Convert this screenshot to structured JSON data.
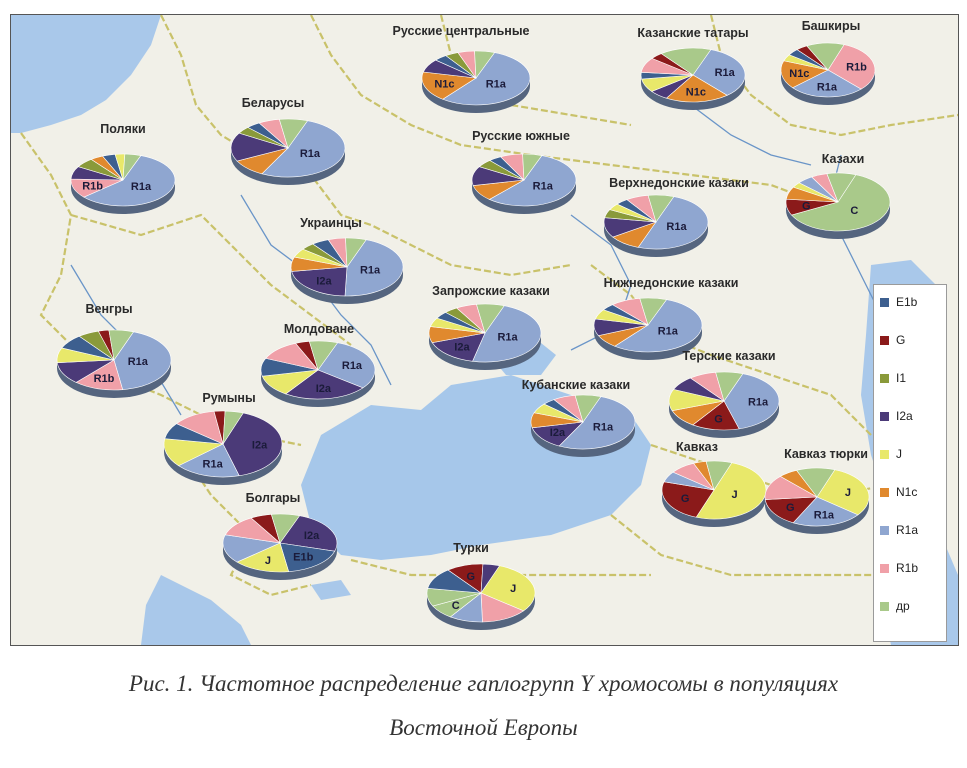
{
  "colors": {
    "E1b": "#3d5f8f",
    "G": "#8b1a1a",
    "I1": "#8a9a3a",
    "I2a": "#4b3a78",
    "J": "#e8e86a",
    "N1c": "#e0892e",
    "R1a": "#8fa6d0",
    "R1b": "#f0a0a8",
    "dr": "#a9c98a"
  },
  "legend": [
    {
      "key": "E1b",
      "label": "E1b"
    },
    {
      "key": "G",
      "label": "G"
    },
    {
      "key": "I1",
      "label": "I1"
    },
    {
      "key": "I2a",
      "label": "I2a"
    },
    {
      "key": "J",
      "label": "J"
    },
    {
      "key": "N1c",
      "label": "N1c"
    },
    {
      "key": "R1a",
      "label": "R1a"
    },
    {
      "key": "R1b",
      "label": "R1b"
    },
    {
      "key": "dr",
      "label": "др"
    }
  ],
  "chart_data": [
    {
      "type": "pie",
      "title": "Поляки",
      "slices": [
        {
          "group": "R1a",
          "value": 58,
          "label": "R1a"
        },
        {
          "group": "R1b",
          "value": 12,
          "label": "R1b"
        },
        {
          "group": "I2a",
          "value": 8
        },
        {
          "group": "I1",
          "value": 6
        },
        {
          "group": "N1c",
          "value": 4
        },
        {
          "group": "E1b",
          "value": 4
        },
        {
          "group": "J",
          "value": 3
        },
        {
          "group": "dr",
          "value": 5
        }
      ]
    },
    {
      "type": "pie",
      "title": "Беларусы",
      "slices": [
        {
          "group": "R1a",
          "value": 52,
          "label": "R1a"
        },
        {
          "group": "N1c",
          "value": 10
        },
        {
          "group": "I2a",
          "value": 16
        },
        {
          "group": "I1",
          "value": 4
        },
        {
          "group": "E1b",
          "value": 4
        },
        {
          "group": "R1b",
          "value": 6
        },
        {
          "group": "dr",
          "value": 8
        }
      ]
    },
    {
      "type": "pie",
      "title": "Русские центральные",
      "slices": [
        {
          "group": "R1a",
          "value": 55,
          "label": "R1a"
        },
        {
          "group": "N1c",
          "value": 18,
          "label": "N1c"
        },
        {
          "group": "I2a",
          "value": 8
        },
        {
          "group": "E1b",
          "value": 4
        },
        {
          "group": "I1",
          "value": 4
        },
        {
          "group": "R1b",
          "value": 5
        },
        {
          "group": "dr",
          "value": 6
        }
      ]
    },
    {
      "type": "pie",
      "title": "Казанские татары",
      "slices": [
        {
          "group": "R1a",
          "value": 33,
          "label": "R1a"
        },
        {
          "group": "N1c",
          "value": 20,
          "label": "N1c"
        },
        {
          "group": "I2a",
          "value": 6
        },
        {
          "group": "J",
          "value": 8
        },
        {
          "group": "E1b",
          "value": 4
        },
        {
          "group": "R1b",
          "value": 9
        },
        {
          "group": "G",
          "value": 4
        },
        {
          "group": "dr",
          "value": 16
        }
      ]
    },
    {
      "type": "pie",
      "title": "Башкиры",
      "slices": [
        {
          "group": "R1b",
          "value": 32,
          "label": "R1b"
        },
        {
          "group": "R1a",
          "value": 26,
          "label": "R1a"
        },
        {
          "group": "N1c",
          "value": 17,
          "label": "N1c"
        },
        {
          "group": "J",
          "value": 4
        },
        {
          "group": "E1b",
          "value": 4
        },
        {
          "group": "G",
          "value": 4
        },
        {
          "group": "dr",
          "value": 13
        }
      ]
    },
    {
      "type": "pie",
      "title": "Русские южные",
      "slices": [
        {
          "group": "R1a",
          "value": 56,
          "label": "R1a"
        },
        {
          "group": "N1c",
          "value": 10
        },
        {
          "group": "I2a",
          "value": 12
        },
        {
          "group": "I1",
          "value": 5
        },
        {
          "group": "E1b",
          "value": 4
        },
        {
          "group": "R1b",
          "value": 7
        },
        {
          "group": "dr",
          "value": 6
        }
      ]
    },
    {
      "type": "pie",
      "title": "Казахи",
      "slices": [
        {
          "group": "C",
          "value": 62,
          "label": "C"
        },
        {
          "group": "G",
          "value": 9,
          "label": "G"
        },
        {
          "group": "N1c",
          "value": 7
        },
        {
          "group": "J",
          "value": 3
        },
        {
          "group": "R1a",
          "value": 5
        },
        {
          "group": "R1b",
          "value": 5
        },
        {
          "group": "dr",
          "value": 9
        }
      ]
    },
    {
      "type": "pie",
      "title": "Верхнедонские казаки",
      "slices": [
        {
          "group": "R1a",
          "value": 50,
          "label": "R1a"
        },
        {
          "group": "N1c",
          "value": 10
        },
        {
          "group": "I2a",
          "value": 12
        },
        {
          "group": "I1",
          "value": 5
        },
        {
          "group": "J",
          "value": 4
        },
        {
          "group": "E1b",
          "value": 4
        },
        {
          "group": "R1b",
          "value": 7
        },
        {
          "group": "dr",
          "value": 8
        }
      ]
    },
    {
      "type": "pie",
      "title": "Украинцы",
      "slices": [
        {
          "group": "R1a",
          "value": 45,
          "label": "R1a"
        },
        {
          "group": "I2a",
          "value": 22,
          "label": "I2a"
        },
        {
          "group": "N1c",
          "value": 8
        },
        {
          "group": "J",
          "value": 5
        },
        {
          "group": "I1",
          "value": 4
        },
        {
          "group": "E1b",
          "value": 5
        },
        {
          "group": "R1b",
          "value": 5
        },
        {
          "group": "dr",
          "value": 6
        }
      ]
    },
    {
      "type": "pie",
      "title": "Венгры",
      "slices": [
        {
          "group": "R1a",
          "value": 42,
          "label": "R1a"
        },
        {
          "group": "R1b",
          "value": 14,
          "label": "R1b"
        },
        {
          "group": "I2a",
          "value": 12
        },
        {
          "group": "J",
          "value": 8
        },
        {
          "group": "E1b",
          "value": 8
        },
        {
          "group": "I1",
          "value": 6
        },
        {
          "group": "G",
          "value": 3
        },
        {
          "group": "dr",
          "value": 7
        }
      ]
    },
    {
      "type": "pie",
      "title": "Запрожские казаки",
      "slices": [
        {
          "group": "R1a",
          "value": 48,
          "label": "R1a"
        },
        {
          "group": "I2a",
          "value": 16,
          "label": "I2a"
        },
        {
          "group": "N1c",
          "value": 9
        },
        {
          "group": "J",
          "value": 5
        },
        {
          "group": "E1b",
          "value": 4
        },
        {
          "group": "I1",
          "value": 4
        },
        {
          "group": "R1b",
          "value": 6
        },
        {
          "group": "dr",
          "value": 8
        }
      ]
    },
    {
      "type": "pie",
      "title": "Нижнедонские казаки",
      "slices": [
        {
          "group": "R1a",
          "value": 55,
          "label": "R1a"
        },
        {
          "group": "N1c",
          "value": 8
        },
        {
          "group": "I2a",
          "value": 10
        },
        {
          "group": "J",
          "value": 6
        },
        {
          "group": "E1b",
          "value": 4
        },
        {
          "group": "R1b",
          "value": 9
        },
        {
          "group": "dr",
          "value": 8
        }
      ]
    },
    {
      "type": "pie",
      "title": "Молдоване",
      "slices": [
        {
          "group": "R1a",
          "value": 30,
          "label": "R1a"
        },
        {
          "group": "I2a",
          "value": 24,
          "label": "I2a"
        },
        {
          "group": "J",
          "value": 12
        },
        {
          "group": "E1b",
          "value": 10
        },
        {
          "group": "R1b",
          "value": 12
        },
        {
          "group": "G",
          "value": 4
        },
        {
          "group": "dr",
          "value": 8
        }
      ]
    },
    {
      "type": "pie",
      "title": "Терские казаки",
      "slices": [
        {
          "group": "R1a",
          "value": 40,
          "label": "R1a"
        },
        {
          "group": "G",
          "value": 14,
          "label": "G"
        },
        {
          "group": "N1c",
          "value": 10
        },
        {
          "group": "J",
          "value": 12
        },
        {
          "group": "I2a",
          "value": 8
        },
        {
          "group": "R1b",
          "value": 8
        },
        {
          "group": "dr",
          "value": 8
        }
      ]
    },
    {
      "type": "pie",
      "title": "Кубанские казаки",
      "slices": [
        {
          "group": "R1a",
          "value": 52,
          "label": "R1a"
        },
        {
          "group": "I2a",
          "value": 14,
          "label": "I2a"
        },
        {
          "group": "N1c",
          "value": 9
        },
        {
          "group": "J",
          "value": 6
        },
        {
          "group": "E1b",
          "value": 4
        },
        {
          "group": "R1b",
          "value": 7
        },
        {
          "group": "dr",
          "value": 8
        }
      ]
    },
    {
      "type": "pie",
      "title": "Румыны",
      "slices": [
        {
          "group": "I2a",
          "value": 40,
          "label": "I2a"
        },
        {
          "group": "R1a",
          "value": 18,
          "label": "R1a"
        },
        {
          "group": "J",
          "value": 14
        },
        {
          "group": "E1b",
          "value": 8
        },
        {
          "group": "R1b",
          "value": 12
        },
        {
          "group": "G",
          "value": 3
        },
        {
          "group": "dr",
          "value": 5
        }
      ]
    },
    {
      "type": "pie",
      "title": "Кавказ",
      "slices": [
        {
          "group": "J",
          "value": 50,
          "label": "J"
        },
        {
          "group": "G",
          "value": 24,
          "label": "G"
        },
        {
          "group": "R1a",
          "value": 6
        },
        {
          "group": "R1b",
          "value": 8
        },
        {
          "group": "N1c",
          "value": 4
        },
        {
          "group": "dr",
          "value": 8
        }
      ]
    },
    {
      "type": "pie",
      "title": "Кавказ тюрки",
      "slices": [
        {
          "group": "J",
          "value": 30,
          "label": "J"
        },
        {
          "group": "R1a",
          "value": 22,
          "label": "R1a"
        },
        {
          "group": "G",
          "value": 16,
          "label": "G"
        },
        {
          "group": "R1b",
          "value": 14
        },
        {
          "group": "N1c",
          "value": 6
        },
        {
          "group": "dr",
          "value": 12
        }
      ]
    },
    {
      "type": "pie",
      "title": "Болгары",
      "slices": [
        {
          "group": "I2a",
          "value": 24,
          "label": "I2a"
        },
        {
          "group": "E1b",
          "value": 18,
          "label": "E1b"
        },
        {
          "group": "J",
          "value": 16,
          "label": "J"
        },
        {
          "group": "R1a",
          "value": 16
        },
        {
          "group": "R1b",
          "value": 12
        },
        {
          "group": "G",
          "value": 6
        },
        {
          "group": "dr",
          "value": 8
        }
      ]
    },
    {
      "type": "pie",
      "title": "Турки",
      "slices": [
        {
          "group": "J",
          "value": 30,
          "label": "J"
        },
        {
          "group": "R1b",
          "value": 14
        },
        {
          "group": "R1a",
          "value": 10
        },
        {
          "group": "C",
          "value": 8,
          "label": "C"
        },
        {
          "group": "dr",
          "value": 10
        },
        {
          "group": "E1b",
          "value": 12
        },
        {
          "group": "G",
          "value": 11,
          "label": "G"
        },
        {
          "group": "I2a",
          "value": 5
        }
      ]
    }
  ],
  "caption": {
    "line1": "Рис. 1. Частотное распределение гаплогрупп Y хромосомы в популяциях",
    "line2": "Восточной Европы"
  }
}
